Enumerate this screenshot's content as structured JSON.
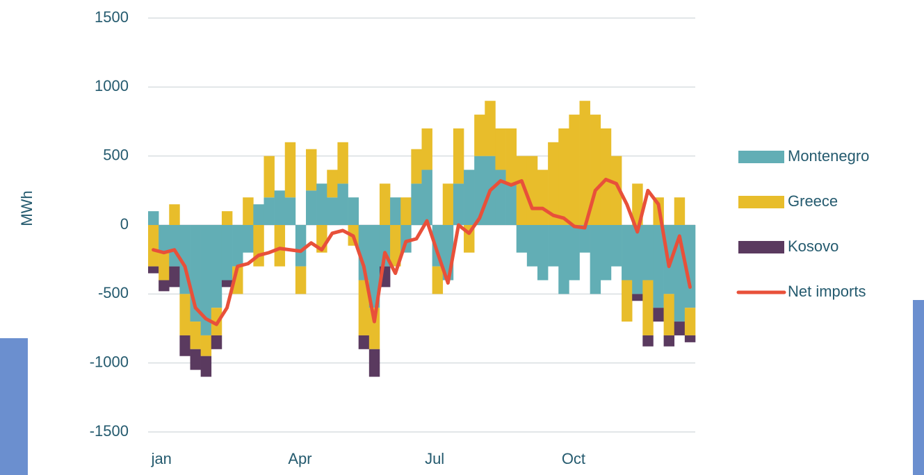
{
  "chart_data": {
    "type": "bar",
    "ylabel": "MWh",
    "categories": [
      "jan",
      null,
      null,
      null,
      null,
      null,
      null,
      null,
      null,
      null,
      null,
      null,
      null,
      "Apr",
      null,
      null,
      null,
      null,
      null,
      null,
      null,
      null,
      null,
      null,
      null,
      null,
      "Jul",
      null,
      null,
      null,
      null,
      null,
      null,
      null,
      null,
      null,
      null,
      null,
      null,
      "Oct",
      null,
      null,
      null,
      null,
      null,
      null,
      null,
      null,
      null,
      null,
      null,
      null
    ],
    "series": [
      {
        "name": "Montenegro",
        "type": "bar",
        "color": "#62aeb5",
        "values": [
          100,
          -200,
          -300,
          -500,
          -700,
          -800,
          -600,
          -400,
          -300,
          -200,
          150,
          200,
          250,
          200,
          -300,
          250,
          300,
          200,
          300,
          200,
          -400,
          -600,
          -300,
          200,
          -200,
          300,
          400,
          -300,
          -400,
          300,
          400,
          500,
          500,
          400,
          300,
          -200,
          -300,
          -400,
          -300,
          -500,
          -400,
          -200,
          -500,
          -400,
          -300,
          -400,
          -500,
          -400,
          -600,
          -500,
          -700,
          -600
        ]
      },
      {
        "name": "Greece",
        "type": "bar",
        "color": "#e8bd2b",
        "values": [
          -300,
          -200,
          150,
          -300,
          -200,
          -150,
          -200,
          100,
          -200,
          200,
          -300,
          300,
          -300,
          400,
          -200,
          300,
          -200,
          200,
          300,
          -150,
          -400,
          -300,
          300,
          -300,
          200,
          250,
          300,
          -200,
          300,
          400,
          -200,
          300,
          400,
          300,
          400,
          500,
          500,
          400,
          600,
          700,
          800,
          900,
          800,
          700,
          500,
          -300,
          300,
          -400,
          200,
          -300,
          200,
          -200
        ]
      },
      {
        "name": "Kosovo",
        "type": "bar",
        "color": "#5a3a5f",
        "values": [
          -50,
          -80,
          -150,
          -150,
          -150,
          -150,
          -100,
          -50,
          0,
          0,
          0,
          0,
          0,
          0,
          0,
          0,
          0,
          0,
          0,
          0,
          -100,
          -200,
          -150,
          0,
          0,
          0,
          0,
          0,
          0,
          0,
          0,
          0,
          0,
          0,
          0,
          0,
          0,
          0,
          0,
          0,
          0,
          0,
          0,
          0,
          0,
          0,
          -50,
          -80,
          -100,
          -80,
          -100,
          -50
        ]
      },
      {
        "name": "Net imports",
        "type": "line",
        "color": "#e8503a",
        "values": [
          -180,
          -200,
          -180,
          -300,
          -600,
          -680,
          -720,
          -600,
          -300,
          -280,
          -220,
          -200,
          -170,
          -180,
          -190,
          -130,
          -180,
          -60,
          -40,
          -80,
          -300,
          -700,
          -200,
          -350,
          -120,
          -100,
          30,
          -200,
          -420,
          0,
          -60,
          50,
          250,
          320,
          290,
          320,
          120,
          120,
          70,
          50,
          -10,
          -20,
          250,
          330,
          300,
          150,
          -50,
          250,
          150,
          -300,
          -80,
          -450
        ]
      }
    ],
    "ylim": [
      -1500,
      1500
    ],
    "yticks": [
      -1500,
      -1000,
      -500,
      0,
      500,
      1000,
      1500
    ],
    "grid": true,
    "legend": "right"
  }
}
